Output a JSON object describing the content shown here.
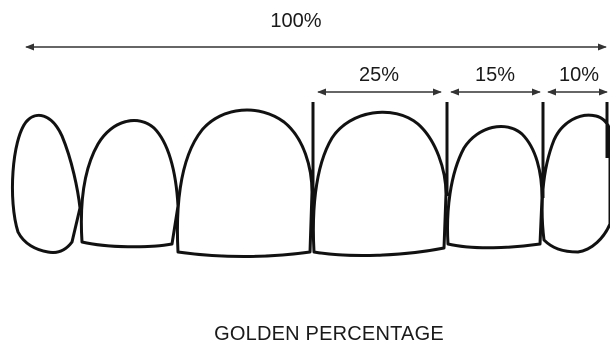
{
  "diagram": {
    "total_label": "100%",
    "segments": [
      {
        "label": "25%"
      },
      {
        "label": "15%"
      },
      {
        "label": "10%"
      }
    ],
    "caption": "GOLDEN PERCENTAGE",
    "colors": {
      "outline": "#111111",
      "arrow": "#333333",
      "text": "#1a1a1a",
      "background": "#ffffff"
    }
  }
}
